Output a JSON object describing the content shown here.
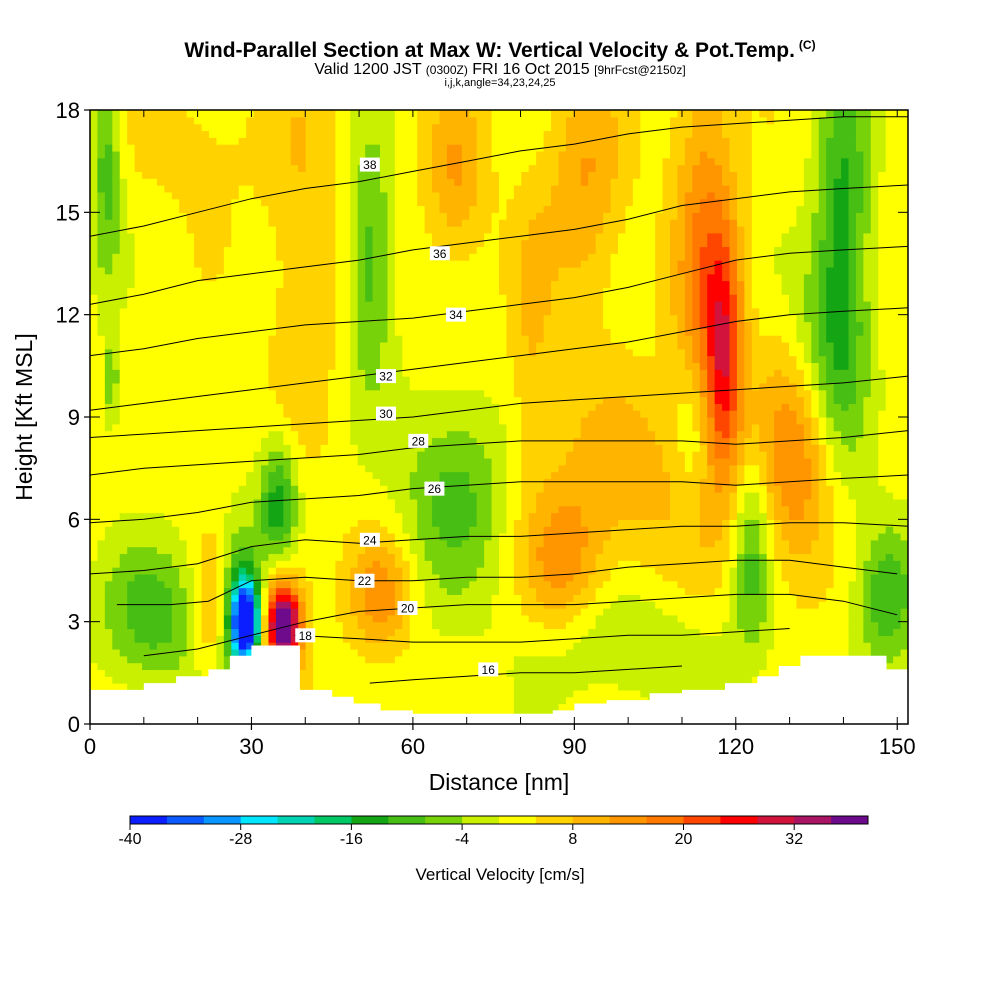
{
  "title": {
    "main": "Wind-Parallel Section at Max W: Vertical Velocity & Pot.Temp.",
    "copyright": "(C)",
    "valid_prefix": "Valid 1200 JST",
    "valid_utc": "(0300Z)",
    "valid_date": "FRI 16 Oct 2015",
    "forecast": "[9hrFcst@2150z]",
    "subline": "i,j,k,angle=34,23,24,25"
  },
  "chart_data": {
    "type": "heatmap",
    "xlabel": "Distance [nm]",
    "ylabel": "Height [Kft MSL]",
    "xlim": [
      0,
      152
    ],
    "ylim": [
      0,
      18
    ],
    "xticks": [
      0,
      30,
      60,
      90,
      120,
      150
    ],
    "yticks": [
      0,
      3,
      6,
      9,
      12,
      15,
      18
    ],
    "fill_variable": "Vertical Velocity",
    "contour_variable": "Potential Temperature",
    "colorbar": {
      "title": "Vertical Velocity [cm/s]",
      "levels": [
        -40,
        -36,
        -32,
        -28,
        -24,
        -20,
        -16,
        -12,
        -8,
        -4,
        0,
        4,
        8,
        12,
        16,
        20,
        24,
        28,
        32,
        36,
        40
      ],
      "tick_labels": [
        "-40",
        "-28",
        "-16",
        "-4",
        "8",
        "20",
        "32"
      ],
      "tick_values": [
        -40,
        -28,
        -16,
        -4,
        8,
        20,
        32
      ],
      "colors": [
        "#0a1eff",
        "#0a5aff",
        "#0a96ff",
        "#00e6ff",
        "#00d2b4",
        "#00c864",
        "#14a514",
        "#46be14",
        "#78d20a",
        "#c8f000",
        "#ffff00",
        "#ffd200",
        "#ffb400",
        "#ff9600",
        "#ff7800",
        "#ff4600",
        "#ff0000",
        "#d2143c",
        "#aa1464",
        "#6e0a8c"
      ]
    },
    "wmax_location": {
      "x": 29,
      "y": 3.0,
      "w": -40
    },
    "wmin_location": {
      "x": 36,
      "y": 2.9,
      "w": 32
    },
    "terrain": {
      "x": [
        0,
        7,
        10,
        16,
        22,
        26,
        30,
        35,
        39,
        42,
        45,
        49,
        54,
        60,
        64,
        70,
        78,
        86,
        90,
        96,
        104,
        110,
        118,
        124,
        128,
        132,
        136,
        142,
        148,
        152
      ],
      "y": [
        1.0,
        1.0,
        1.2,
        1.4,
        1.6,
        2.0,
        2.3,
        2.3,
        1.0,
        1.0,
        0.8,
        0.6,
        0.4,
        0.3,
        0.3,
        0.3,
        0.3,
        0.4,
        0.6,
        0.7,
        0.9,
        1.0,
        1.2,
        1.4,
        1.7,
        2.0,
        2.0,
        2.0,
        1.6,
        1.6
      ]
    },
    "theta_contours": [
      {
        "value": 16,
        "x": [
          52,
          60,
          70,
          80,
          90,
          100,
          110
        ],
        "y": [
          1.2,
          1.3,
          1.4,
          1.5,
          1.5,
          1.6,
          1.7
        ],
        "label_at": [
          74,
          1.6
        ]
      },
      {
        "value": 18,
        "x": [
          38,
          50,
          60,
          70,
          80,
          90,
          100,
          110,
          120,
          130
        ],
        "y": [
          2.6,
          2.5,
          2.4,
          2.4,
          2.4,
          2.5,
          2.6,
          2.6,
          2.7,
          2.8
        ],
        "label_at": [
          40,
          2.6
        ]
      },
      {
        "value": 20,
        "x": [
          10,
          20,
          30,
          40,
          50,
          60,
          70,
          80,
          90,
          100,
          110,
          120,
          130,
          140,
          150
        ],
        "y": [
          2.0,
          2.2,
          2.6,
          3.0,
          3.3,
          3.4,
          3.5,
          3.5,
          3.5,
          3.6,
          3.7,
          3.8,
          3.8,
          3.6,
          3.2
        ],
        "label_at": [
          59,
          3.4
        ]
      },
      {
        "value": 22,
        "x": [
          5,
          15,
          22,
          30,
          40,
          50,
          60,
          70,
          80,
          90,
          100,
          110,
          120,
          130,
          140,
          150
        ],
        "y": [
          3.5,
          3.5,
          3.6,
          4.2,
          4.3,
          4.2,
          4.2,
          4.3,
          4.3,
          4.4,
          4.6,
          4.7,
          4.8,
          4.8,
          4.6,
          4.4
        ],
        "label_at": [
          51,
          4.2
        ]
      },
      {
        "value": 24,
        "x": [
          0,
          10,
          20,
          30,
          40,
          50,
          60,
          70,
          80,
          90,
          100,
          110,
          120,
          130,
          140,
          152
        ],
        "y": [
          4.4,
          4.5,
          4.7,
          5.2,
          5.4,
          5.3,
          5.4,
          5.5,
          5.5,
          5.6,
          5.7,
          5.8,
          5.8,
          5.9,
          5.9,
          5.8
        ],
        "label_at": [
          52,
          5.4
        ]
      },
      {
        "value": 26,
        "x": [
          0,
          10,
          20,
          30,
          40,
          50,
          60,
          70,
          80,
          90,
          100,
          110,
          120,
          130,
          140,
          152
        ],
        "y": [
          5.9,
          6.0,
          6.2,
          6.5,
          6.6,
          6.7,
          6.9,
          7.0,
          7.1,
          7.1,
          7.1,
          7.1,
          7.0,
          7.1,
          7.2,
          7.3
        ],
        "label_at": [
          64,
          6.9
        ]
      },
      {
        "value": 28,
        "x": [
          0,
          10,
          20,
          30,
          40,
          50,
          60,
          70,
          80,
          90,
          100,
          110,
          120,
          130,
          140,
          152
        ],
        "y": [
          7.3,
          7.5,
          7.6,
          7.7,
          7.8,
          7.9,
          8.1,
          8.2,
          8.3,
          8.3,
          8.3,
          8.3,
          8.2,
          8.3,
          8.4,
          8.6
        ],
        "label_at": [
          61,
          8.3
        ]
      },
      {
        "value": 30,
        "x": [
          0,
          10,
          20,
          30,
          40,
          50,
          60,
          70,
          80,
          90,
          100,
          110,
          120,
          130,
          140,
          152
        ],
        "y": [
          8.4,
          8.5,
          8.6,
          8.7,
          8.8,
          8.9,
          9.0,
          9.2,
          9.4,
          9.5,
          9.6,
          9.7,
          9.8,
          9.9,
          10.0,
          10.2
        ],
        "label_at": [
          55,
          9.1
        ]
      },
      {
        "value": 32,
        "x": [
          0,
          10,
          20,
          30,
          40,
          50,
          60,
          70,
          80,
          90,
          100,
          110,
          120,
          130,
          140,
          152
        ],
        "y": [
          9.2,
          9.4,
          9.6,
          9.8,
          10.0,
          10.2,
          10.4,
          10.6,
          10.8,
          11.0,
          11.2,
          11.5,
          11.8,
          12.0,
          12.1,
          12.2
        ],
        "label_at": [
          55,
          10.2
        ]
      },
      {
        "value": 34,
        "x": [
          0,
          10,
          20,
          30,
          40,
          50,
          60,
          70,
          80,
          90,
          100,
          110,
          120,
          130,
          140,
          152
        ],
        "y": [
          10.8,
          11.0,
          11.3,
          11.5,
          11.7,
          11.8,
          11.9,
          12.1,
          12.3,
          12.5,
          12.8,
          13.2,
          13.6,
          13.8,
          13.9,
          14.0
        ],
        "label_at": [
          68,
          12.0
        ]
      },
      {
        "value": 36,
        "x": [
          0,
          10,
          20,
          30,
          40,
          50,
          60,
          70,
          80,
          90,
          100,
          110,
          120,
          130,
          140,
          152
        ],
        "y": [
          12.3,
          12.6,
          13.0,
          13.2,
          13.4,
          13.6,
          13.9,
          14.1,
          14.3,
          14.5,
          14.8,
          15.2,
          15.4,
          15.6,
          15.7,
          15.8
        ],
        "label_at": [
          65,
          13.8
        ]
      },
      {
        "value": 38,
        "x": [
          0,
          10,
          20,
          30,
          40,
          50,
          60,
          70,
          80,
          90,
          100,
          110,
          120,
          130,
          140,
          152
        ],
        "y": [
          14.3,
          14.6,
          15.0,
          15.4,
          15.7,
          15.9,
          16.2,
          16.5,
          16.8,
          17.0,
          17.3,
          17.5,
          17.6,
          17.7,
          17.8,
          17.8
        ],
        "label_at": [
          52,
          16.4
        ]
      }
    ],
    "w_field_blobs": [
      {
        "x": 29,
        "y": 3.0,
        "sx": 1.8,
        "sy": 0.8,
        "w": -40
      },
      {
        "x": 28,
        "y": 3.4,
        "sx": 3.5,
        "sy": 1.6,
        "w": -20
      },
      {
        "x": 36,
        "y": 2.9,
        "sx": 2.0,
        "sy": 0.7,
        "w": 34
      },
      {
        "x": 35,
        "y": 3.3,
        "sx": 3.5,
        "sy": 1.5,
        "w": 16
      },
      {
        "x": 23,
        "y": 3.4,
        "sx": 2.5,
        "sy": 1.4,
        "w": 14
      },
      {
        "x": 35,
        "y": 6.3,
        "sx": 2.5,
        "sy": 1.4,
        "w": -18
      },
      {
        "x": 12,
        "y": 3.2,
        "sx": 7.0,
        "sy": 1.5,
        "w": -12
      },
      {
        "x": 54,
        "y": 3.8,
        "sx": 4.0,
        "sy": 1.2,
        "w": 12
      },
      {
        "x": 68,
        "y": 6.8,
        "sx": 7.0,
        "sy": 2.0,
        "w": -12
      },
      {
        "x": 52,
        "y": 13.5,
        "sx": 3.0,
        "sy": 2.5,
        "w": -13
      },
      {
        "x": 40,
        "y": 14.2,
        "sx": 5.0,
        "sy": 4.0,
        "w": 6
      },
      {
        "x": 68,
        "y": 16.0,
        "sx": 4.0,
        "sy": 1.8,
        "w": 10
      },
      {
        "x": 92,
        "y": 15.8,
        "sx": 5.0,
        "sy": 2.5,
        "w": 10
      },
      {
        "x": 114,
        "y": 13.5,
        "sx": 4.0,
        "sy": 4.5,
        "w": 14
      },
      {
        "x": 118,
        "y": 10.8,
        "sx": 2.5,
        "sy": 2.5,
        "w": 20
      },
      {
        "x": 140,
        "y": 14.0,
        "sx": 3.5,
        "sy": 4.0,
        "w": -16
      },
      {
        "x": 135,
        "y": 11.0,
        "sx": 4.5,
        "sy": 2.0,
        "w": -8
      },
      {
        "x": 131,
        "y": 7.8,
        "sx": 5.0,
        "sy": 2.5,
        "w": 14
      },
      {
        "x": 98,
        "y": 7.2,
        "sx": 12.0,
        "sy": 2.0,
        "w": 8
      },
      {
        "x": 88,
        "y": 4.6,
        "sx": 5.0,
        "sy": 1.4,
        "w": 10
      },
      {
        "x": 100,
        "y": 2.3,
        "sx": 14.0,
        "sy": 1.2,
        "w": -6
      },
      {
        "x": 123,
        "y": 5.0,
        "sx": 2.5,
        "sy": 2.0,
        "w": -12
      },
      {
        "x": 148,
        "y": 3.8,
        "sx": 4.0,
        "sy": 1.5,
        "w": -14
      },
      {
        "x": 3,
        "y": 16.5,
        "sx": 2.0,
        "sy": 2.5,
        "w": -12
      },
      {
        "x": 4,
        "y": 10.0,
        "sx": 1.0,
        "sy": 1.0,
        "w": -10
      },
      {
        "x": 82,
        "y": 11.5,
        "sx": 3.0,
        "sy": 3.0,
        "w": 6
      },
      {
        "x": 20,
        "y": 17.0,
        "sx": 8.0,
        "sy": 1.5,
        "w": 4
      },
      {
        "x": 112,
        "y": 8.5,
        "sx": 2.5,
        "sy": 1.5,
        "w": -8
      }
    ]
  }
}
